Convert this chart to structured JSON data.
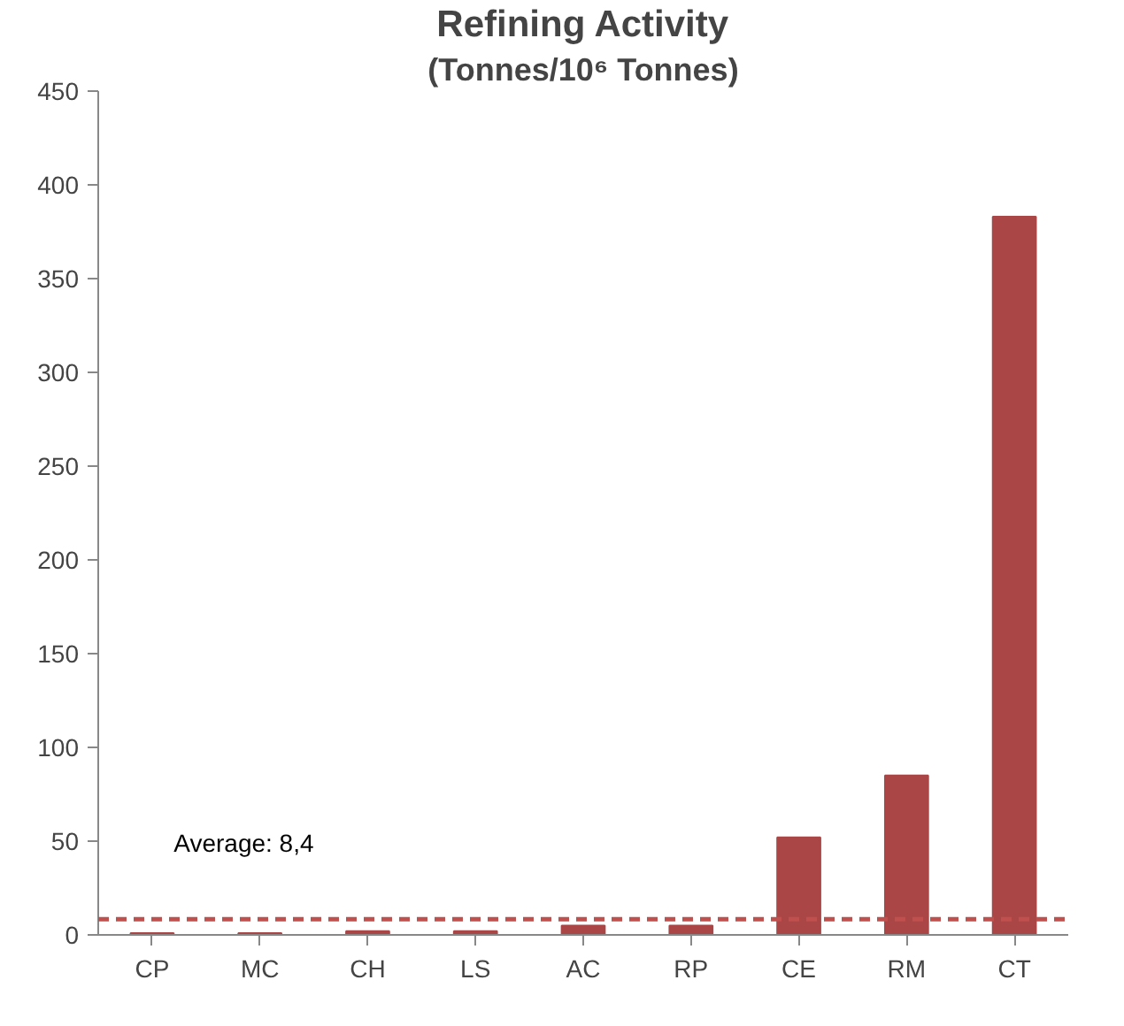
{
  "chart_data": {
    "type": "bar",
    "title": "Refining Activity",
    "subtitle": "(Tonnes/10⁶ Tonnes)",
    "categories": [
      "CP",
      "MC",
      "CH",
      "LS",
      "AC",
      "RP",
      "CE",
      "RM",
      "CT"
    ],
    "values": [
      1,
      1,
      2,
      2,
      5,
      5,
      52,
      85,
      383
    ],
    "color": "#ab4646",
    "ylim": [
      0,
      450
    ],
    "yticks": [
      0,
      50,
      100,
      150,
      200,
      250,
      300,
      350,
      400,
      450
    ],
    "ref_lines": [
      {
        "axis": "y",
        "value": 8.4,
        "label": "Average:  8,4",
        "color": "#c0504d",
        "line_style": "dashed"
      }
    ],
    "grid": false
  }
}
